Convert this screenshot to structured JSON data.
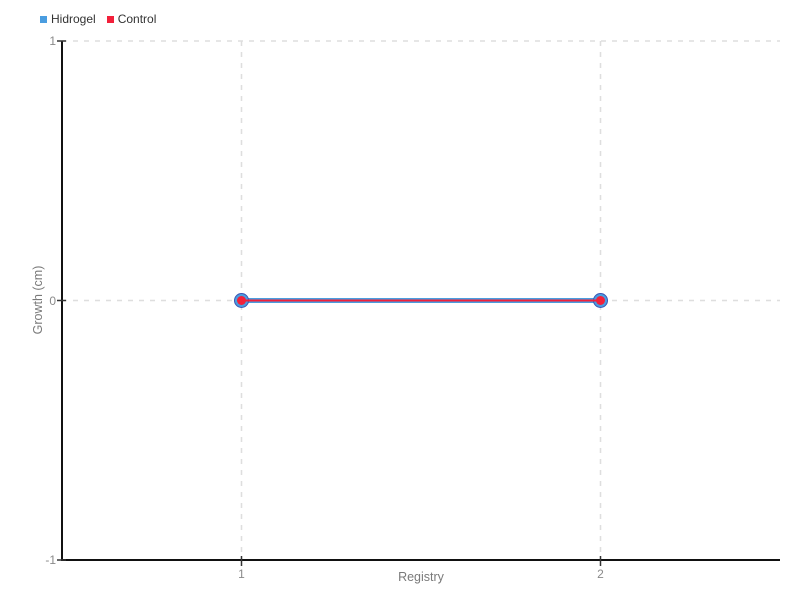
{
  "legend": {
    "items": [
      {
        "label": "Hidrogel",
        "color": "#4a9de0"
      },
      {
        "label": "Control",
        "color": "#f2203a"
      }
    ]
  },
  "chart_data": {
    "type": "line",
    "x": [
      1,
      2
    ],
    "series": [
      {
        "name": "Hidrogel",
        "values": [
          0,
          0
        ],
        "color": "#4a9de0",
        "line_width": 5,
        "point_radius": 7,
        "point_border_color": "#3a56b4",
        "point_border_width": 1
      },
      {
        "name": "Control",
        "values": [
          0,
          0
        ],
        "color": "#f2203a",
        "line_width": 2,
        "point_radius": 4.5,
        "point_border_color": "none",
        "point_border_width": 0
      }
    ],
    "xlabel": "Registry",
    "ylabel": "Growth (cm)",
    "xlim": [
      0.5,
      2.5
    ],
    "ylim": [
      -1,
      1
    ],
    "xticks": [
      1,
      2
    ],
    "yticks": [
      -1,
      0,
      1
    ],
    "xtick_labels": [
      "1",
      "2"
    ],
    "ytick_labels": [
      "-1",
      "0",
      "1"
    ],
    "grid": true,
    "grid_style": "dashed",
    "legend_position": "top-left"
  },
  "colors": {
    "background": "#ffffff",
    "axis": "#111111",
    "grid": "#dedede",
    "tick_label": "#8a8a8a",
    "axis_label": "#7a7a7a",
    "legend_text": "#333333"
  }
}
